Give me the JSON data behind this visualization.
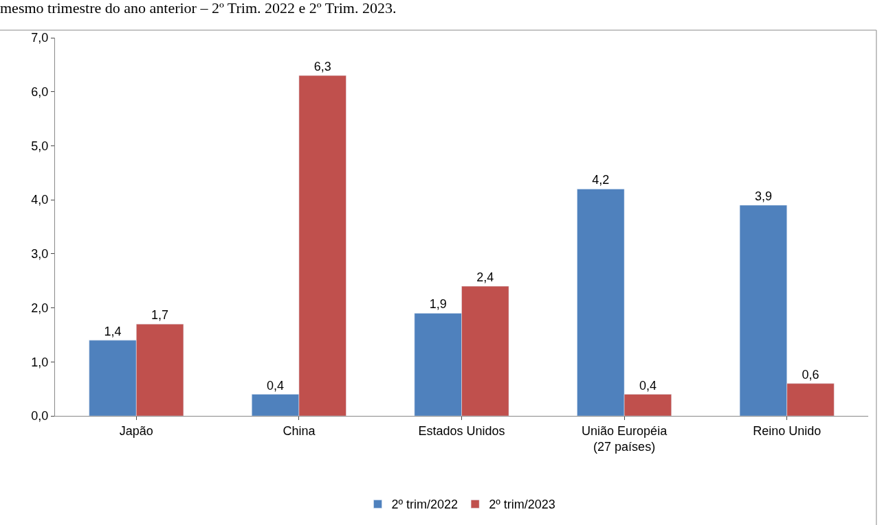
{
  "chart_data": {
    "type": "bar",
    "title": "mesmo trimestre do ano anterior – 2º Trim. 2022 e 2º Trim. 2023.",
    "categories": [
      "Japão",
      "China",
      "Estados Unidos",
      "União Européia\n(27 países)",
      "Reino Unido"
    ],
    "series": [
      {
        "name": "2º trim/2022",
        "color": "#4f81bd",
        "values": [
          1.4,
          0.4,
          1.9,
          4.2,
          3.9
        ],
        "value_labels": [
          "1,4",
          "0,4",
          "1,9",
          "4,2",
          "3,9"
        ]
      },
      {
        "name": "2º trim/2023",
        "color": "#c0504d",
        "values": [
          1.7,
          6.3,
          2.4,
          0.4,
          0.6
        ],
        "value_labels": [
          "1,7",
          "6,3",
          "2,4",
          "0,4",
          "0,6"
        ]
      }
    ],
    "ylim": [
      0,
      7
    ],
    "yticks": [
      {
        "value": 0,
        "label": "0,0"
      },
      {
        "value": 1,
        "label": "1,0"
      },
      {
        "value": 2,
        "label": "2,0"
      },
      {
        "value": 3,
        "label": "3,0"
      },
      {
        "value": 4,
        "label": "4,0"
      },
      {
        "value": 5,
        "label": "5,0"
      },
      {
        "value": 6,
        "label": "6,0"
      },
      {
        "value": 7,
        "label": "7,0"
      }
    ],
    "grid": false,
    "legend": "bottom"
  }
}
